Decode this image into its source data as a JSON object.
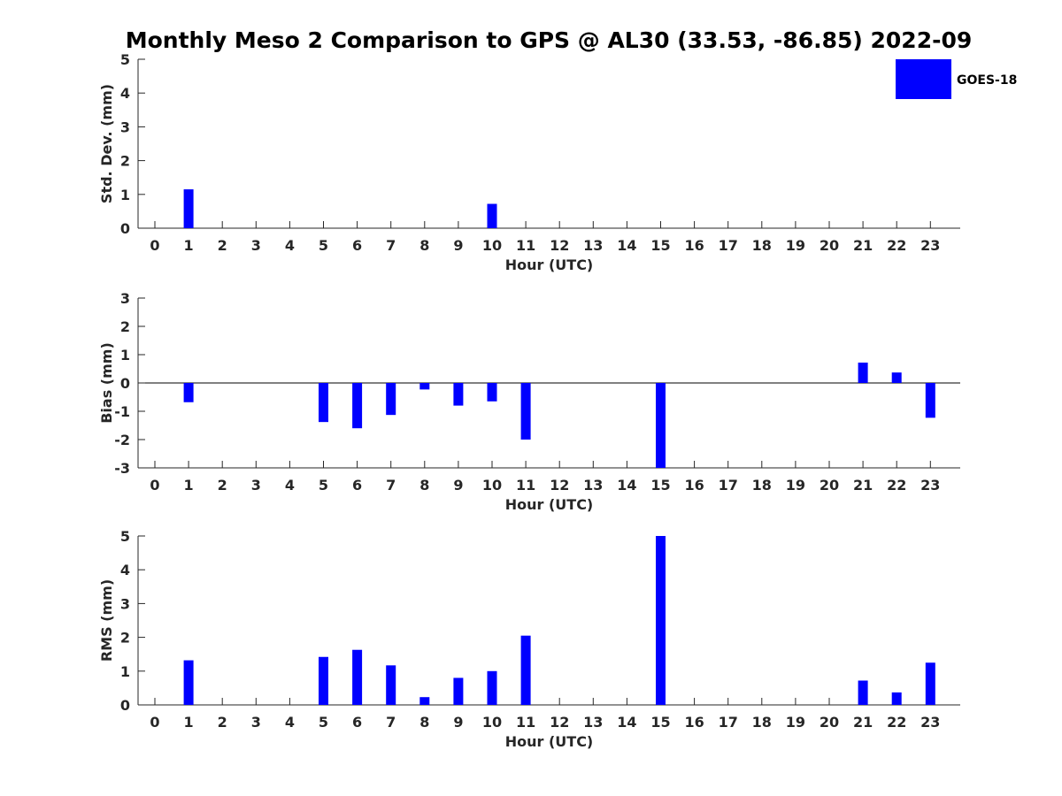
{
  "title": "Monthly Meso 2 Comparison to GPS @ AL30 (33.53, -86.85) 2022-09",
  "legend": {
    "label": "GOES-18",
    "color": "#0000ff",
    "placement": "top-right"
  },
  "colors": {
    "bar": "#0000ff",
    "axis": "#262626"
  },
  "chart_data": [
    {
      "type": "bar",
      "ylabel": "Std. Dev. (mm)",
      "xlabel": "Hour (UTC)",
      "ylim": [
        0,
        5
      ],
      "yticks": [
        0,
        1,
        2,
        3,
        4,
        5
      ],
      "categories": [
        0,
        1,
        2,
        3,
        4,
        5,
        6,
        7,
        8,
        9,
        10,
        11,
        12,
        13,
        14,
        15,
        16,
        17,
        18,
        19,
        20,
        21,
        22,
        23
      ],
      "values": [
        null,
        1.15,
        null,
        null,
        null,
        null,
        null,
        null,
        null,
        null,
        0.72,
        null,
        null,
        null,
        null,
        null,
        null,
        null,
        null,
        null,
        null,
        null,
        null,
        null
      ],
      "grid": false
    },
    {
      "type": "bar",
      "ylabel": "Bias (mm)",
      "xlabel": "Hour (UTC)",
      "ylim": [
        -3,
        3
      ],
      "yticks": [
        -3,
        -2,
        -1,
        0,
        1,
        2,
        3
      ],
      "categories": [
        0,
        1,
        2,
        3,
        4,
        5,
        6,
        7,
        8,
        9,
        10,
        11,
        12,
        13,
        14,
        15,
        16,
        17,
        18,
        19,
        20,
        21,
        22,
        23
      ],
      "values": [
        null,
        -0.68,
        null,
        null,
        null,
        -1.38,
        -1.6,
        -1.13,
        -0.23,
        -0.8,
        -0.65,
        -2.0,
        null,
        null,
        null,
        -3.0,
        null,
        null,
        null,
        null,
        null,
        0.72,
        0.37,
        -1.23
      ],
      "grid": false
    },
    {
      "type": "bar",
      "ylabel": "RMS (mm)",
      "xlabel": "Hour (UTC)",
      "ylim": [
        0,
        5
      ],
      "yticks": [
        0,
        1,
        2,
        3,
        4,
        5
      ],
      "categories": [
        0,
        1,
        2,
        3,
        4,
        5,
        6,
        7,
        8,
        9,
        10,
        11,
        12,
        13,
        14,
        15,
        16,
        17,
        18,
        19,
        20,
        21,
        22,
        23
      ],
      "values": [
        null,
        1.32,
        null,
        null,
        null,
        1.42,
        1.63,
        1.17,
        0.23,
        0.8,
        1.0,
        2.05,
        null,
        null,
        null,
        5.0,
        null,
        null,
        null,
        null,
        null,
        0.72,
        0.37,
        1.25
      ],
      "grid": false
    }
  ]
}
